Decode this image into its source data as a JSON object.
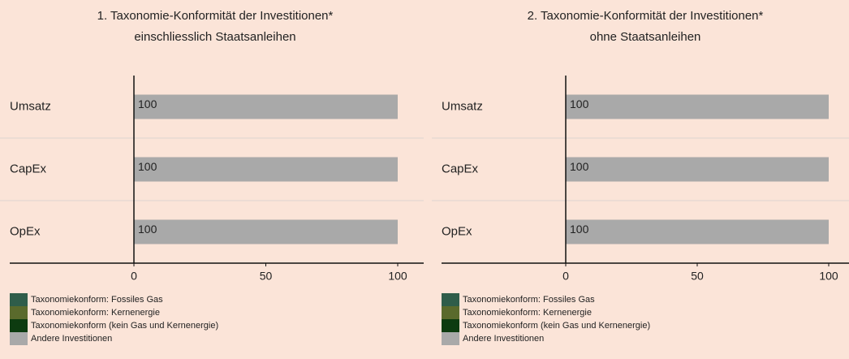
{
  "chart_data": [
    {
      "type": "stacked-bar-horizontal",
      "title": [
        "1. Taxonomie-Konformität der Investitionen*",
        "einschliesslich Staatsanleihen"
      ],
      "categories": [
        "Umsatz",
        "CapEx",
        "OpEx"
      ],
      "series": [
        {
          "name": "Taxonomiekonform: Fossiles Gas",
          "color": "#2f5d4a",
          "values": [
            0,
            0,
            0
          ]
        },
        {
          "name": "Taxonomiekonform: Kernenergie",
          "color": "#5a6a2c",
          "values": [
            0,
            0,
            0
          ]
        },
        {
          "name": "Taxonomiekonform (kein Gas und Kernenergie)",
          "color": "#0d3b10",
          "values": [
            0,
            0,
            0
          ]
        },
        {
          "name": "Andere Investitionen",
          "color": "#a9a9a9",
          "values": [
            100,
            100,
            100
          ]
        }
      ],
      "xlim": [
        0,
        100
      ],
      "xticks": [
        0,
        50,
        100
      ]
    },
    {
      "type": "stacked-bar-horizontal",
      "title": [
        "2. Taxonomie-Konformität der Investitionen*",
        "ohne Staatsanleihen"
      ],
      "categories": [
        "Umsatz",
        "CapEx",
        "OpEx"
      ],
      "series": [
        {
          "name": "Taxonomiekonform: Fossiles Gas",
          "color": "#2f5d4a",
          "values": [
            0,
            0,
            0
          ]
        },
        {
          "name": "Taxonomiekonform: Kernenergie",
          "color": "#5a6a2c",
          "values": [
            0,
            0,
            0
          ]
        },
        {
          "name": "Taxonomiekonform (kein Gas und Kernenergie)",
          "color": "#0d3b10",
          "values": [
            0,
            0,
            0
          ]
        },
        {
          "name": "Andere Investitionen",
          "color": "#a9a9a9",
          "values": [
            100,
            100,
            100
          ]
        }
      ],
      "xlim": [
        0,
        100
      ],
      "xticks": [
        0,
        50,
        100
      ]
    }
  ]
}
